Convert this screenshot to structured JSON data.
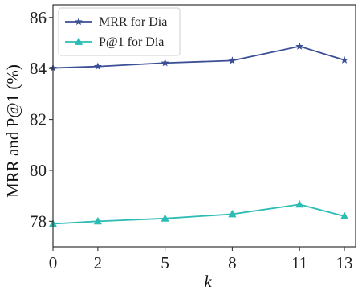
{
  "chart_data": {
    "type": "line",
    "xlabel": "k",
    "ylabel": "MRR and P@1 (%)",
    "x": [
      0,
      2,
      5,
      8,
      11,
      13
    ],
    "xticks": [
      "0",
      "2",
      "5",
      "8",
      "11",
      "13"
    ],
    "yticks": [
      "78",
      "80",
      "82",
      "84",
      "86"
    ],
    "xlim": [
      0,
      13.5
    ],
    "ylim": [
      77.0,
      86.5
    ],
    "grid": false,
    "legend_position": "top-left",
    "series": [
      {
        "name": "MRR for Dia",
        "values": [
          84.02,
          84.08,
          84.22,
          84.31,
          84.87,
          84.33
        ],
        "color": "#3b4e96",
        "marker": "star"
      },
      {
        "name": "P@1 for Dia",
        "values": [
          77.9,
          78.0,
          78.11,
          78.28,
          78.66,
          78.2
        ],
        "color": "#2bbcb5",
        "marker": "triangle"
      }
    ]
  }
}
